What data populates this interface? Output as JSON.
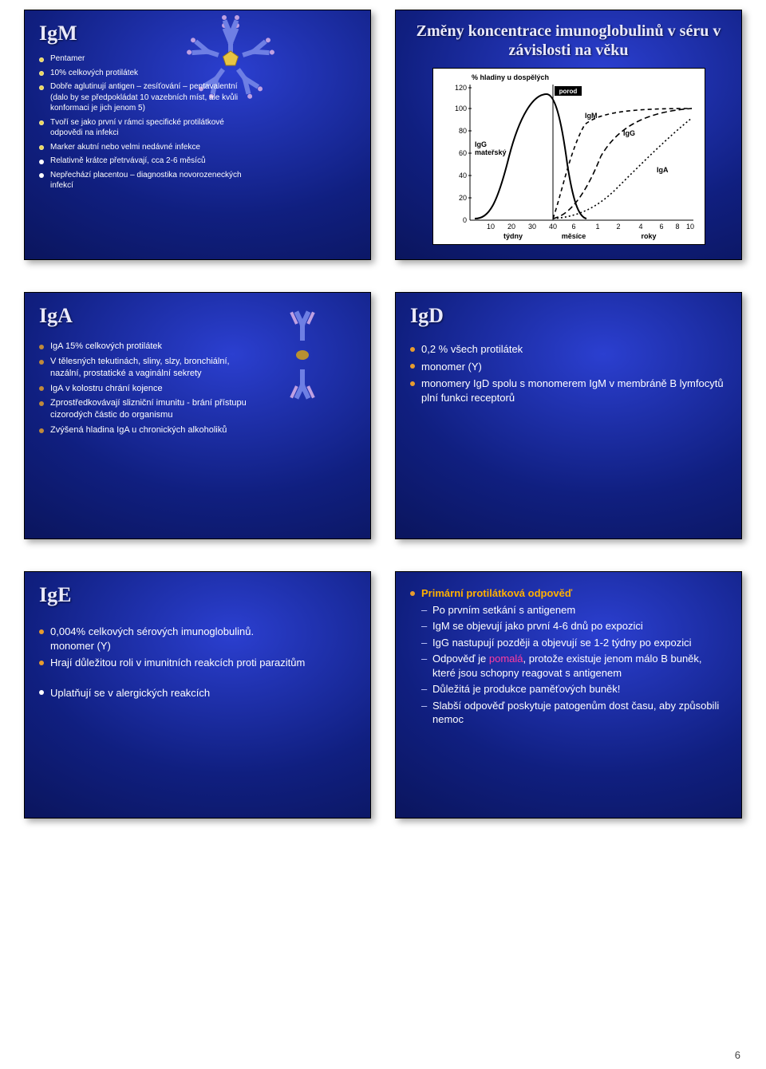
{
  "page_number": "6",
  "slides": {
    "igm": {
      "title": "IgM",
      "bullets": [
        "Pentamer",
        "10% celkových protilátek",
        "Dobře aglutinují antigen – zesíťování – pentavalentní (dalo by se předpokládat 10 vazebních míst, ale kvůli konformaci je jich jenom 5)",
        "Tvoří se jako první v rámci specifické protilátkové odpovědi na infekci",
        "Marker akutní nebo velmi nedávné infekce",
        "Relativně krátce přetrvávají, cca 2-6 měsíců",
        "Nepřechází placentou – diagnostika novorozeneckých infekcí"
      ]
    },
    "chart": {
      "title": "Změny koncentrace imunoglobulinů v séru v závislosti na věku",
      "y_label": "% hladiny u dospělých",
      "y_ticks": [
        "0",
        "20",
        "40",
        "60",
        "80",
        "100",
        "120"
      ],
      "x_weeks": [
        "10",
        "20",
        "30",
        "40"
      ],
      "x_months": [
        "6"
      ],
      "x_years": [
        "1",
        "2",
        "4",
        "6",
        "8",
        "10"
      ],
      "x_axis_labels": {
        "weeks": "týdny",
        "months": "měsíce",
        "years": "roky"
      },
      "birth_label": "porod",
      "series": {
        "maternal": {
          "label_l1": "IgG",
          "label_l2": "mateřský",
          "color": "#000",
          "dash": "0"
        },
        "igm": {
          "label": "IgM",
          "color": "#000",
          "dash": "4 3"
        },
        "igg": {
          "label": "IgG",
          "color": "#000",
          "dash": "5 3"
        },
        "iga": {
          "label": "IgA",
          "color": "#000",
          "dash": "2 2"
        }
      }
    },
    "iga": {
      "title": "IgA",
      "bullets": [
        "IgA 15% celkových protilátek",
        "V tělesných tekutinách, sliny, slzy, bronchiální, nazální, prostatické a vaginální sekrety",
        "IgA v kolostru chrání kojence",
        "Zprostředkovávají slizniční imunitu - brání přístupu cizorodých částic do organismu",
        "Zvýšená hladina IgA u chronických alkoholiků"
      ]
    },
    "igd": {
      "title": "IgD",
      "bullets": [
        "0,2 % všech protilátek",
        "monomer (Y)",
        "monomery IgD spolu s monomerem IgM v membráně B lymfocytů plní funkci receptorů"
      ]
    },
    "ige": {
      "title": "IgE",
      "line1_a": "0,004% celkových sérových imunoglobulinů.",
      "line1_b": "monomer (Y)",
      "line2": "Hrají důležitou roli v imunitních reakcích proti parazitům",
      "line3": "Uplatňují se v alergických reakcích"
    },
    "primary": {
      "heading": "Primární protilátková odpověď",
      "items": [
        "Po prvním setkání s antigenem",
        "IgM se objevují jako první 4-6 dnů po expozici",
        "IgG nastupují později a objevují se 1-2 týdny po expozici",
        "Odpověď je |pomalá|, protože existuje jenom málo B buněk, které jsou schopny reagovat s antigenem",
        "Důležitá je produkce paměťových buněk!",
        "Slabší odpověď poskytuje patogenům dost času, aby způsobili nemoc"
      ]
    }
  },
  "icons": {
    "pentamer_core": "#e7c443",
    "pentamer_arm": "#6e7fe4",
    "pentamer_tip": "#bfa0e2",
    "dimer_arm": "#6e7fe4",
    "dimer_light": "#bfa0e2",
    "dimer_core": "#b89030"
  },
  "style": {
    "slide_bg_inner": "#2b3fd0",
    "slide_bg_outer": "#08114f",
    "title_color": "#e9e9fa",
    "accent_color": "#ffb000",
    "pink": "#ff3da0"
  }
}
